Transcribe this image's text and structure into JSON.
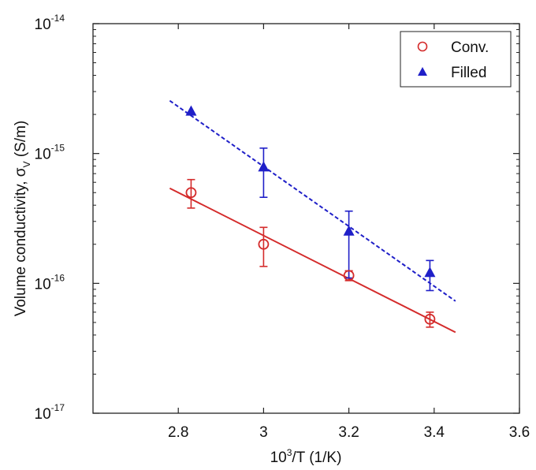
{
  "chart_data": {
    "type": "scatter",
    "x_scale": "linear",
    "y_scale": "log",
    "xlim": [
      2.6,
      3.6
    ],
    "ylim": [
      1e-17,
      1e-14
    ],
    "x_ticks": [
      {
        "value": 2.8,
        "label": "2.8"
      },
      {
        "value": 3.0,
        "label": "3"
      },
      {
        "value": 3.2,
        "label": "3.2"
      },
      {
        "value": 3.4,
        "label": "3.4"
      },
      {
        "value": 3.6,
        "label": "3.6"
      }
    ],
    "y_ticks": [
      {
        "value": 1e-17,
        "base": "10",
        "exp": "-17"
      },
      {
        "value": 1e-16,
        "base": "10",
        "exp": "-16"
      },
      {
        "value": 1e-15,
        "base": "10",
        "exp": "-15"
      },
      {
        "value": 1e-14,
        "base": "10",
        "exp": "-14"
      }
    ],
    "xlabel": {
      "base": "10",
      "exp": "3",
      "rest": "/T (1/K)"
    },
    "ylabel": {
      "main": "Volume conductivity,  σ",
      "sub": "V",
      "rest": " (S/m)"
    },
    "legend_position": "top-right",
    "series": [
      {
        "name": "Conv.",
        "color": "#d42b2b",
        "marker": "open-circle",
        "line": "solid",
        "points": [
          {
            "x": 2.83,
            "y": 5e-16,
            "err_lo": 3.8e-16,
            "err_hi": 6.3e-16
          },
          {
            "x": 3.0,
            "y": 2e-16,
            "err_lo": 1.35e-16,
            "err_hi": 2.7e-16
          },
          {
            "x": 3.2,
            "y": 1.15e-16,
            "err_lo": 1.05e-16,
            "err_hi": 1.25e-16
          },
          {
            "x": 3.39,
            "y": 5.3e-17,
            "err_lo": 4.6e-17,
            "err_hi": 6e-17
          }
        ],
        "fit": [
          {
            "x": 2.78,
            "y": 5.4e-16
          },
          {
            "x": 3.45,
            "y": 4.2e-17
          }
        ]
      },
      {
        "name": "Filled",
        "color": "#1f1fc8",
        "marker": "filled-triangle",
        "line": "dashed",
        "points": [
          {
            "x": 2.83,
            "y": 2.1e-15
          },
          {
            "x": 3.0,
            "y": 7.8e-16,
            "err_lo": 4.6e-16,
            "err_hi": 1.1e-15
          },
          {
            "x": 3.2,
            "y": 2.5e-16,
            "err_lo": 1.1e-16,
            "err_hi": 3.6e-16
          },
          {
            "x": 3.39,
            "y": 1.2e-16,
            "err_lo": 8.8e-17,
            "err_hi": 1.5e-16
          }
        ],
        "fit": [
          {
            "x": 2.78,
            "y": 2.55e-15
          },
          {
            "x": 3.45,
            "y": 7.3e-17
          }
        ]
      }
    ]
  }
}
